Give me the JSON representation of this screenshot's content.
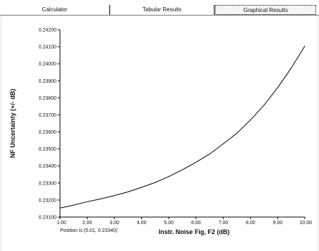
{
  "tabs": [
    {
      "label": "Calculator"
    },
    {
      "label": "Tabular Results"
    },
    {
      "label": "Graphical Results"
    }
  ],
  "status": {
    "position_text": "Position is (5.01, 0.23340)"
  },
  "colors": {
    "curve": "#000000",
    "axis": "#000000"
  },
  "chart_data": {
    "type": "line",
    "title": "",
    "xlabel": "Instr. Noise Fig, F2 (dB)",
    "ylabel": "NF Uncertainty (+/- dB)",
    "xlim": [
      1.0,
      10.0
    ],
    "ylim": [
      0.231,
      0.242
    ],
    "xticks": [
      "1.00",
      "2.00",
      "3.00",
      "4.00",
      "5.00",
      "6.00",
      "7.00",
      "8.00",
      "9.00",
      "10.00"
    ],
    "yticks": [
      "0.23100",
      "0.23200",
      "0.23300",
      "0.23400",
      "0.23500",
      "0.23600",
      "0.23700",
      "0.23800",
      "0.23900",
      "0.24000",
      "0.24100",
      "0.24200"
    ],
    "grid": false,
    "series": [
      {
        "x": [
          1.0,
          1.5,
          2.0,
          2.5,
          3.0,
          3.5,
          4.0,
          4.5,
          5.0,
          5.5,
          6.0,
          6.5,
          7.0,
          7.5,
          8.0,
          8.5,
          9.0,
          9.5,
          10.0
        ],
        "y": [
          0.23153,
          0.2317,
          0.2319,
          0.23207,
          0.23226,
          0.23248,
          0.23275,
          0.23303,
          0.23338,
          0.23378,
          0.23422,
          0.2347,
          0.2353,
          0.23592,
          0.2367,
          0.23757,
          0.2386,
          0.23975,
          0.24105
        ]
      }
    ]
  }
}
